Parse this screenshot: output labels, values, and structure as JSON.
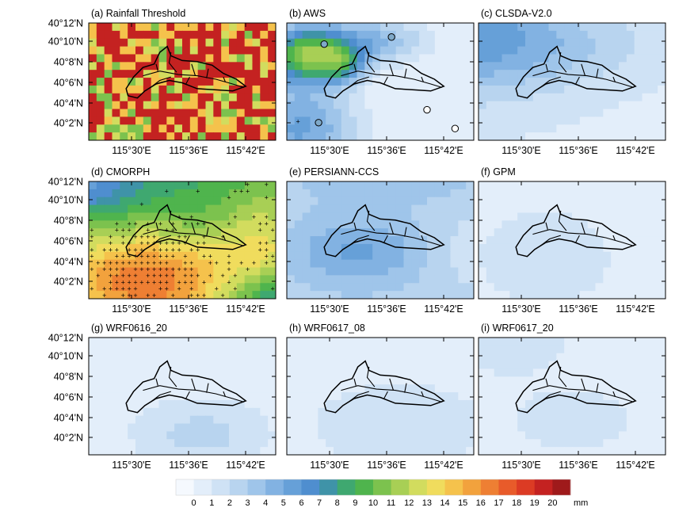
{
  "figure": {
    "panels": [
      {
        "id": "a",
        "title": "(a) Rainfall  Threshold",
        "field": "threshold"
      },
      {
        "id": "b",
        "title": "(b) AWS",
        "field": "aws"
      },
      {
        "id": "c",
        "title": "(c) CLSDA-V2.0",
        "field": "clsda"
      },
      {
        "id": "d",
        "title": "(d) CMORPH",
        "field": "cmorph"
      },
      {
        "id": "e",
        "title": "(e) PERSIANN-CCS",
        "field": "persiann"
      },
      {
        "id": "f",
        "title": "(f) GPM",
        "field": "gpm"
      },
      {
        "id": "g",
        "title": "(g) WRF0616_20",
        "field": "wrf1"
      },
      {
        "id": "h",
        "title": "(h) WRF0617_08",
        "field": "wrf2"
      },
      {
        "id": "i",
        "title": "(i) WRF0617_20",
        "field": "wrf3"
      }
    ],
    "lat_ticks": [
      "40°12'N",
      "40°10'N",
      "40°8'N",
      "40°6'N",
      "40°4'N",
      "40°2'N"
    ],
    "lon_ticks": [
      "115°30'E",
      "115°36'E",
      "115°42'E"
    ],
    "colorbar": {
      "unit": "mm",
      "min": 0,
      "max": 20,
      "labels": [
        "0",
        "1",
        "2",
        "3",
        "4",
        "5",
        "6",
        "7",
        "8",
        "9",
        "10",
        "11",
        "12",
        "13",
        "14",
        "15",
        "16",
        "17",
        "18",
        "19",
        "20"
      ],
      "colors": [
        "#f5f9fe",
        "#e3eefa",
        "#cfe2f5",
        "#b8d4ef",
        "#9fc5ea",
        "#82b2e2",
        "#66a0d8",
        "#4f8ecf",
        "#3f93a8",
        "#3fa870",
        "#4fb44d",
        "#7cc24e",
        "#a8cf55",
        "#d2dc5e",
        "#f0dc5d",
        "#f5c24c",
        "#f2a23d",
        "#ee7f33",
        "#e85b2a",
        "#dc3b24",
        "#c42221",
        "#9f1a1b"
      ]
    }
  }
}
